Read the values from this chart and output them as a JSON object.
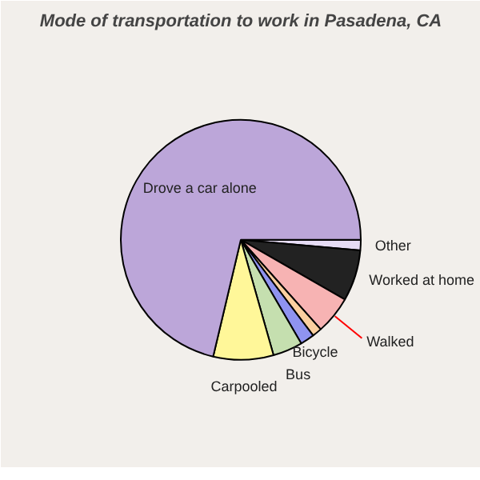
{
  "chart_data": {
    "type": "pie",
    "title": "Mode of transportation to work in Pasadena, CA",
    "categories": [
      "Other",
      "Worked at home",
      "Walked",
      null,
      "Bicycle",
      "Bus",
      "Carpooled",
      "Drove a car alone"
    ],
    "values": [
      1.4,
      6.9,
      5.1,
      1.3,
      1.9,
      4.0,
      8.1,
      71.3
    ],
    "colors": [
      "#e6dcf5",
      "#222222",
      "#f7b3b3",
      "#fcd0a0",
      "#8f93f0",
      "#c5dfaf",
      "#fff799",
      "#bca6d9"
    ]
  }
}
